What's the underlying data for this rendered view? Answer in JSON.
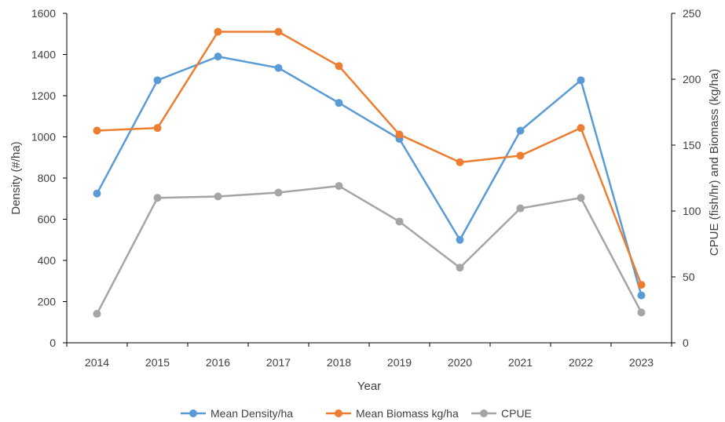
{
  "chart_data": {
    "type": "line",
    "categories": [
      "2014",
      "2015",
      "2016",
      "2017",
      "2018",
      "2019",
      "2020",
      "2021",
      "2022",
      "2023"
    ],
    "xlabel": "Year",
    "ylabel_left": "Density (#/ha)",
    "ylabel_right": "CPUE (fish/hr) and Biomass (kg/ha)",
    "ylim_left": [
      0,
      1600
    ],
    "ylim_right": [
      0,
      250
    ],
    "yticks_left": [
      "0",
      "200",
      "400",
      "600",
      "800",
      "1000",
      "1200",
      "1400",
      "1600"
    ],
    "yticks_right": [
      "0",
      "50",
      "100",
      "150",
      "200",
      "250"
    ],
    "grid": false,
    "legend_position": "bottom",
    "series": [
      {
        "name": "Mean Density/ha",
        "axis": "left",
        "color": "#5B9BD5",
        "values": [
          725,
          1275,
          1390,
          1335,
          1165,
          990,
          500,
          1030,
          1275,
          230
        ]
      },
      {
        "name": "Mean Biomass kg/ha",
        "axis": "right",
        "color": "#ED7D31",
        "values": [
          161,
          163,
          236,
          236,
          210,
          158,
          137,
          142,
          163,
          44
        ]
      },
      {
        "name": "CPUE",
        "axis": "right",
        "color": "#A5A5A5",
        "values": [
          22,
          110,
          111,
          114,
          119,
          92,
          57,
          102,
          110,
          23
        ]
      }
    ]
  }
}
